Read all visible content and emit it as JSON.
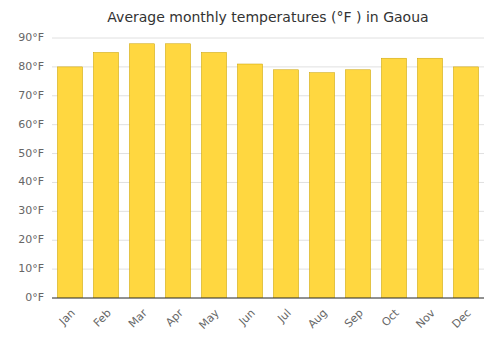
{
  "chart_data": {
    "type": "bar",
    "title": "Average monthly temperatures (°F ) in Gaoua",
    "categories": [
      "Jan",
      "Feb",
      "Mar",
      "Apr",
      "May",
      "Jun",
      "Jul",
      "Aug",
      "Sep",
      "Oct",
      "Nov",
      "Dec"
    ],
    "values": [
      80,
      85,
      88,
      88,
      85,
      81,
      79,
      78,
      79,
      83,
      83,
      80
    ],
    "color": "#FFD740",
    "ylim": [
      0,
      90
    ],
    "yticks": [
      {
        "value": 0,
        "label": "0°F"
      },
      {
        "value": 10,
        "label": "10°F"
      },
      {
        "value": 20,
        "label": "20°F"
      },
      {
        "value": 30,
        "label": "30°F"
      },
      {
        "value": 40,
        "label": "40°F"
      },
      {
        "value": 50,
        "label": "50°F"
      },
      {
        "value": 60,
        "label": "60°F"
      },
      {
        "value": 70,
        "label": "70°F"
      },
      {
        "value": 80,
        "label": "80°F"
      },
      {
        "value": 90,
        "label": "90°F"
      }
    ],
    "grid": true
  }
}
